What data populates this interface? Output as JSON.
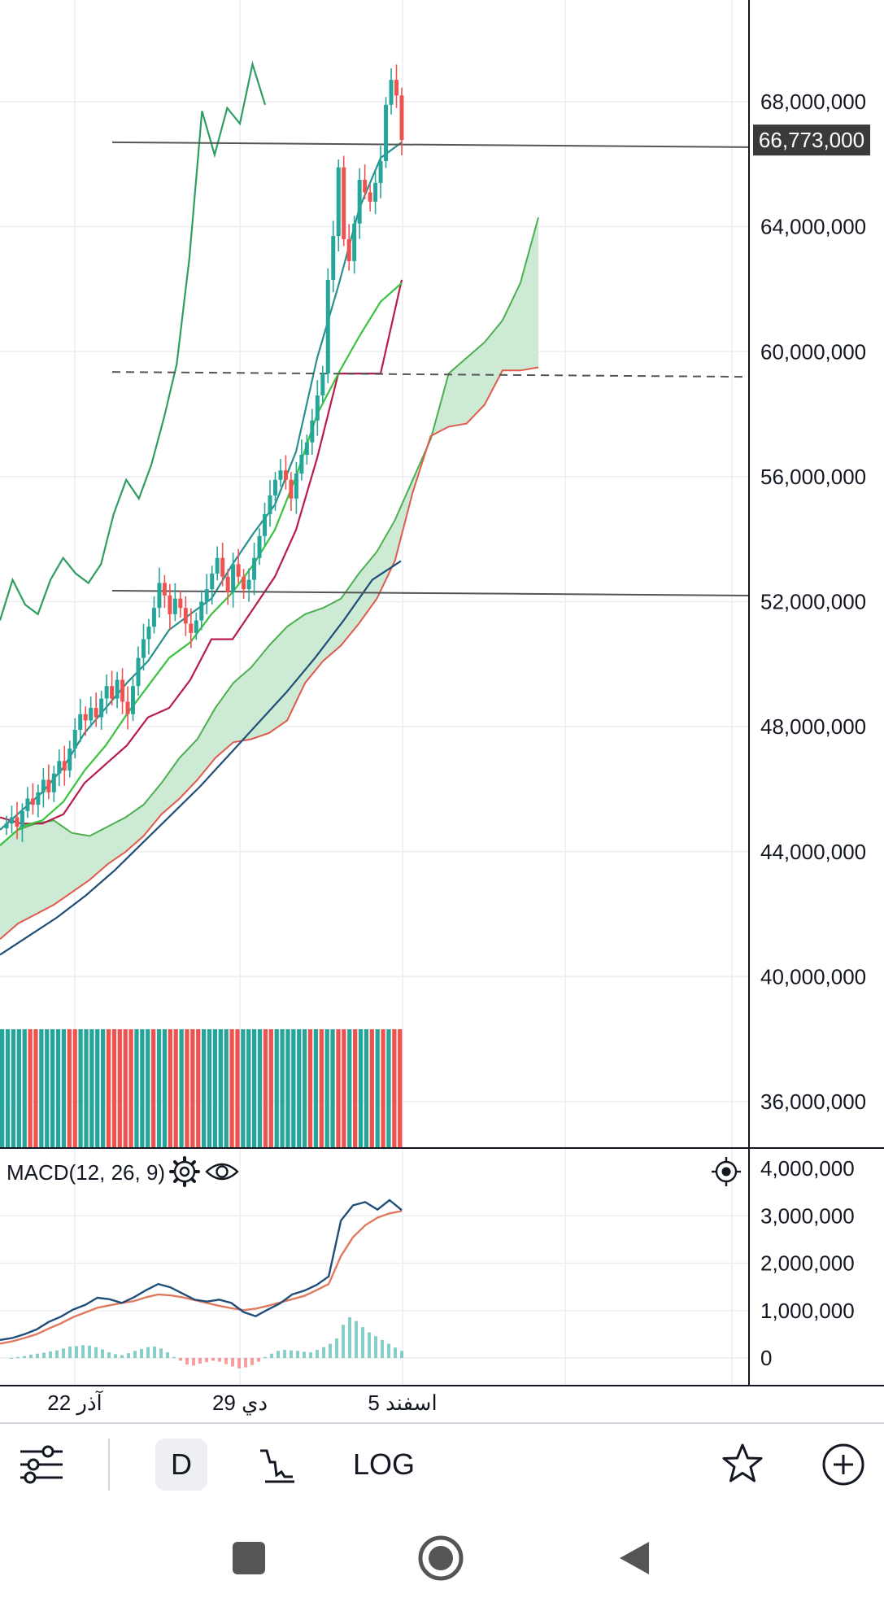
{
  "chart_data": [
    {
      "type": "candlestick",
      "price_axis": {
        "ticks": [
          "68,000,000",
          "64,000,000",
          "60,000,000",
          "56,000,000",
          "52,000,000",
          "48,000,000",
          "44,000,000",
          "40,000,000",
          "36,000,000"
        ],
        "values": [
          68000000,
          64000000,
          60000000,
          56000000,
          52000000,
          48000000,
          44000000,
          40000000,
          36000000
        ],
        "range": [
          34500000,
          70300000
        ]
      },
      "current_price": {
        "label": "66,773,000",
        "value": 66773000
      },
      "horizontal_lines": [
        {
          "value": 66650000,
          "style": "solid",
          "color": "#555555"
        },
        {
          "value": 59300000,
          "style": "dashed",
          "color": "#555555"
        },
        {
          "value": 52300000,
          "style": "solid",
          "color": "#555555"
        }
      ],
      "candles_close": [
        44900000,
        45100000,
        44800000,
        45300000,
        45700000,
        45500000,
        45900000,
        46300000,
        45900000,
        46500000,
        46900000,
        46600000,
        47300000,
        47900000,
        48400000,
        48200000,
        48600000,
        48300000,
        48900000,
        49300000,
        48900000,
        49500000,
        48800000,
        48400000,
        49300000,
        50200000,
        50800000,
        51200000,
        51800000,
        52600000,
        52200000,
        51600000,
        52100000,
        51800000,
        51300000,
        51000000,
        51400000,
        52000000,
        52400000,
        52900000,
        53400000,
        52800000,
        52300000,
        53200000,
        52800000,
        52400000,
        52700000,
        53400000,
        54100000,
        54800000,
        55400000,
        55900000,
        56200000,
        55900000,
        55300000,
        56100000,
        56700000,
        57100000,
        57800000,
        58600000,
        59300000,
        62300000,
        63700000,
        65900000,
        63600000,
        62900000,
        64100000,
        65500000,
        65100000,
        64800000,
        65400000,
        66100000,
        67900000,
        68700000,
        68200000,
        66773000
      ],
      "colors": {
        "up": "#26a69a",
        "down": "#ef5350",
        "cloud_fill": "#cdebd4",
        "span_a": "#4caf50",
        "span_b": "#e05a4f",
        "baseline": "#b71c4a",
        "conversion": "#2a8f8f",
        "lagging": "#2e9e62",
        "ma": "#1f4e79",
        "ma_fast": "#39c33e"
      },
      "volume": {
        "bars": 72,
        "colors": [
          "#26a69a",
          "#ef5350"
        ]
      },
      "x_axis": {
        "labels": [
          "22 آذر",
          "29 دي",
          "5 اسفند"
        ]
      }
    },
    {
      "type": "line",
      "title": "MACD(12, 26, 9)",
      "y_ticks": [
        "4,000,000",
        "3,000,000",
        "2,000,000",
        "1,000,000",
        "0"
      ],
      "y_values": [
        4000000,
        3000000,
        2000000,
        1000000,
        0
      ],
      "ylim": [
        -300000,
        4400000
      ],
      "series": [
        {
          "values": [
            380000,
            420000,
            500000,
            600000,
            760000,
            870000,
            1020000,
            1120000,
            1270000,
            1240000,
            1160000,
            1280000,
            1430000,
            1560000,
            1490000,
            1360000,
            1230000,
            1190000,
            1230000,
            1160000,
            970000,
            880000,
            1020000,
            1150000,
            1340000,
            1420000,
            1540000,
            1720000,
            2900000,
            3220000,
            3290000,
            3130000,
            3330000,
            3120000
          ],
          "color": "#1f4e79"
        },
        {
          "values": [
            300000,
            350000,
            420000,
            500000,
            620000,
            730000,
            860000,
            960000,
            1060000,
            1110000,
            1160000,
            1200000,
            1280000,
            1340000,
            1320000,
            1280000,
            1220000,
            1160000,
            1100000,
            1050000,
            1010000,
            1040000,
            1100000,
            1170000,
            1240000,
            1310000,
            1430000,
            1560000,
            2150000,
            2550000,
            2800000,
            2960000,
            3050000,
            3100000
          ],
          "color": "#e07a5f"
        }
      ],
      "histogram": [
        0,
        20000,
        40000,
        70000,
        90000,
        110000,
        140000,
        160000,
        200000,
        240000,
        250000,
        270000,
        260000,
        230000,
        180000,
        120000,
        80000,
        60000,
        100000,
        150000,
        190000,
        230000,
        240000,
        200000,
        120000,
        20000,
        -60000,
        -140000,
        -160000,
        -120000,
        -90000,
        -60000,
        -80000,
        -130000,
        -180000,
        -220000,
        -200000,
        -150000,
        -80000,
        20000,
        90000,
        150000,
        170000,
        160000,
        150000,
        130000,
        120000,
        170000,
        230000,
        300000,
        410000,
        700000,
        860000,
        780000,
        650000,
        540000,
        460000,
        380000,
        300000,
        220000,
        150000
      ],
      "colors": {
        "hist_up": "#26a69a",
        "hist_down": "#ef5350"
      }
    }
  ],
  "toolbar": {
    "d_label": "D",
    "log_label": "LOG"
  }
}
